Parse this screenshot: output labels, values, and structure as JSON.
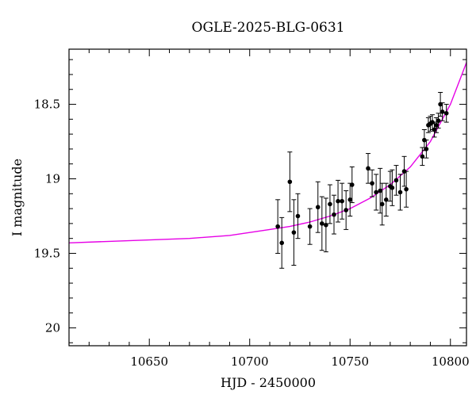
{
  "chart_data": {
    "type": "scatter",
    "title": "OGLE-2025-BLG-0631",
    "xlabel": "HJD - 2450000",
    "ylabel": "I magnitude",
    "xlim": [
      10610,
      10808
    ],
    "ylim": [
      20.12,
      18.13
    ],
    "y_inverted": true,
    "x_ticks": [
      10650,
      10700,
      10750,
      10800
    ],
    "y_ticks": [
      18.5,
      19,
      19.5,
      20
    ],
    "x_tick_labels": [
      "10650",
      "10700",
      "10750",
      "10800"
    ],
    "y_tick_labels": [
      "18.5",
      "19",
      "19.5",
      "20"
    ],
    "grid": false,
    "model_color": "#e600e6",
    "point_color": "#000000",
    "model_curve": {
      "x": [
        10610,
        10630,
        10650,
        10670,
        10690,
        10700,
        10710,
        10720,
        10730,
        10740,
        10750,
        10760,
        10770,
        10780,
        10790,
        10800,
        10808
      ],
      "y": [
        19.43,
        19.42,
        19.41,
        19.4,
        19.38,
        19.36,
        19.34,
        19.32,
        19.29,
        19.25,
        19.2,
        19.13,
        19.04,
        18.92,
        18.75,
        18.5,
        18.22
      ]
    },
    "series": [
      {
        "x": [
          10714,
          10716,
          10720,
          10722,
          10724,
          10730,
          10734,
          10736,
          10738,
          10740,
          10742,
          10744,
          10746,
          10748,
          10750,
          10751,
          10759,
          10761,
          10763,
          10765,
          10766,
          10768,
          10770,
          10771,
          10773,
          10775,
          10777,
          10778,
          10786,
          10787,
          10788,
          10789,
          10790,
          10791,
          10792,
          10793,
          10794,
          10795,
          10796,
          10798
        ],
        "y": [
          19.32,
          19.43,
          19.02,
          19.36,
          19.25,
          19.32,
          19.19,
          19.3,
          19.31,
          19.17,
          19.24,
          19.15,
          19.15,
          19.21,
          19.14,
          19.04,
          18.93,
          19.03,
          19.09,
          19.08,
          19.17,
          19.14,
          19.05,
          19.06,
          19.01,
          19.09,
          18.95,
          19.07,
          18.85,
          18.74,
          18.8,
          18.64,
          18.63,
          18.62,
          18.67,
          18.64,
          18.61,
          18.5,
          18.55,
          18.56
        ],
        "err": [
          0.18,
          0.17,
          0.2,
          0.22,
          0.15,
          0.12,
          0.17,
          0.18,
          0.18,
          0.13,
          0.13,
          0.14,
          0.12,
          0.13,
          0.11,
          0.12,
          0.1,
          0.09,
          0.12,
          0.15,
          0.14,
          0.11,
          0.1,
          0.12,
          0.1,
          0.12,
          0.1,
          0.12,
          0.06,
          0.07,
          0.06,
          0.05,
          0.05,
          0.05,
          0.05,
          0.05,
          0.05,
          0.08,
          0.06,
          0.06
        ]
      }
    ]
  }
}
